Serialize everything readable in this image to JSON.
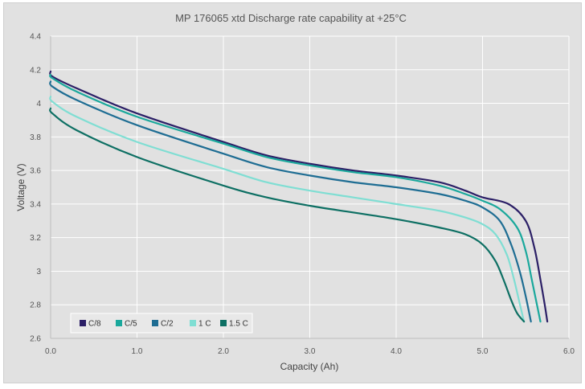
{
  "chart_data": {
    "type": "line",
    "title": "MP 176065 xtd Discharge rate capability at +25°C",
    "xlabel": "Capacity (Ah)",
    "ylabel": "Voltage (V)",
    "xlim": [
      0.0,
      6.0
    ],
    "ylim": [
      2.6,
      4.4
    ],
    "xticks": [
      "0.0",
      "1.0",
      "2.0",
      "3.0",
      "4.0",
      "5.0",
      "6.0"
    ],
    "yticks": [
      "2.6",
      "2.8",
      "3",
      "3.2",
      "3.4",
      "3.6",
      "3.8",
      "4",
      "4.2",
      "4.4"
    ],
    "grid": true,
    "legend_position": "bottom-left",
    "series": [
      {
        "name": "C/8",
        "color": "#2b1f66",
        "x": [
          0,
          0.02,
          0.3,
          1,
          2,
          2.5,
          3,
          3.5,
          4,
          4.5,
          4.8,
          5,
          5.3,
          5.5,
          5.6,
          5.67,
          5.72,
          5.75
        ],
        "y": [
          4.19,
          4.16,
          4.09,
          3.94,
          3.77,
          3.69,
          3.64,
          3.6,
          3.57,
          3.53,
          3.48,
          3.44,
          3.4,
          3.3,
          3.14,
          2.95,
          2.8,
          2.7
        ]
      },
      {
        "name": "C/5",
        "color": "#1aa89c",
        "x": [
          0,
          0.02,
          0.3,
          1,
          2,
          2.5,
          3,
          3.5,
          4,
          4.5,
          4.8,
          5,
          5.2,
          5.4,
          5.5,
          5.57,
          5.63,
          5.67
        ],
        "y": [
          4.17,
          4.15,
          4.07,
          3.92,
          3.76,
          3.68,
          3.63,
          3.59,
          3.56,
          3.51,
          3.46,
          3.42,
          3.37,
          3.26,
          3.12,
          2.95,
          2.8,
          2.7
        ]
      },
      {
        "name": "C/2",
        "color": "#1e6d93",
        "x": [
          0,
          0.02,
          0.3,
          1,
          2,
          2.5,
          3,
          3.5,
          4,
          4.5,
          4.8,
          5,
          5.2,
          5.33,
          5.43,
          5.5,
          5.56
        ],
        "y": [
          4.13,
          4.1,
          4.02,
          3.87,
          3.7,
          3.62,
          3.57,
          3.53,
          3.5,
          3.46,
          3.42,
          3.38,
          3.3,
          3.16,
          3.0,
          2.85,
          2.7
        ]
      },
      {
        "name": "1 C",
        "color": "#7fded3",
        "x": [
          0,
          0.02,
          0.3,
          1,
          2,
          2.5,
          3,
          3.5,
          4,
          4.5,
          4.8,
          5,
          5.15,
          5.28,
          5.36,
          5.42,
          5.48
        ],
        "y": [
          4.04,
          4.01,
          3.92,
          3.77,
          3.61,
          3.53,
          3.48,
          3.44,
          3.4,
          3.36,
          3.32,
          3.28,
          3.22,
          3.1,
          2.96,
          2.83,
          2.7
        ]
      },
      {
        "name": "1.5 C",
        "color": "#0d6f63",
        "x": [
          0,
          0.02,
          0.3,
          1,
          2,
          2.5,
          3,
          3.5,
          4,
          4.5,
          4.8,
          5,
          5.15,
          5.25,
          5.33,
          5.4,
          5.48
        ],
        "y": [
          3.97,
          3.94,
          3.84,
          3.68,
          3.51,
          3.44,
          3.39,
          3.35,
          3.31,
          3.26,
          3.22,
          3.16,
          3.06,
          2.94,
          2.83,
          2.75,
          2.7
        ]
      }
    ]
  }
}
